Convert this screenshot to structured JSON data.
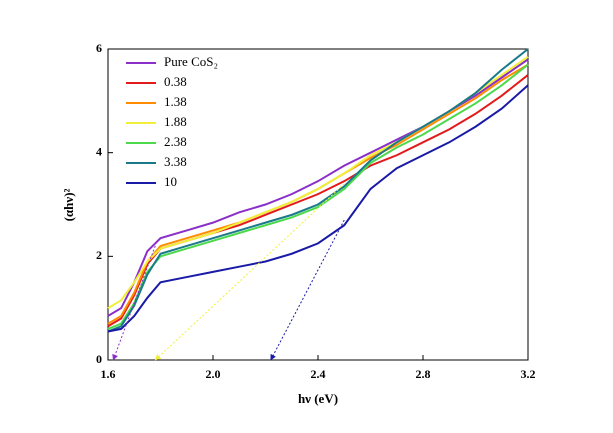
{
  "chart_data": {
    "type": "line",
    "x_label": "hν (eV)",
    "y_label": "(αhν)²",
    "x": [
      1.6,
      1.65,
      1.7,
      1.75,
      1.8,
      1.9,
      2.0,
      2.1,
      2.2,
      2.3,
      2.4,
      2.5,
      2.6,
      2.7,
      2.8,
      2.9,
      3.0,
      3.1,
      3.2
    ],
    "series": [
      {
        "name": "Pure CoS₂",
        "color": "#8b2fc9",
        "values": [
          0.85,
          1.0,
          1.5,
          2.1,
          2.35,
          2.5,
          2.65,
          2.85,
          3.0,
          3.2,
          3.45,
          3.75,
          4.0,
          4.25,
          4.5,
          4.8,
          5.1,
          5.45,
          5.8
        ]
      },
      {
        "name": "0.38",
        "color": "#e31a1c",
        "values": [
          0.65,
          0.8,
          1.25,
          1.85,
          2.15,
          2.3,
          2.45,
          2.6,
          2.8,
          3.0,
          3.2,
          3.45,
          3.75,
          3.95,
          4.2,
          4.45,
          4.75,
          5.1,
          5.5
        ]
      },
      {
        "name": "1.38",
        "color": "#ff8c00",
        "values": [
          0.7,
          0.85,
          1.3,
          1.9,
          2.2,
          2.35,
          2.5,
          2.65,
          2.85,
          3.05,
          3.3,
          3.6,
          3.9,
          4.15,
          4.45,
          4.75,
          5.05,
          5.4,
          5.7
        ]
      },
      {
        "name": "1.88",
        "color": "#f0f03a",
        "values": [
          1.0,
          1.15,
          1.5,
          1.9,
          2.15,
          2.3,
          2.45,
          2.65,
          2.85,
          3.05,
          3.3,
          3.6,
          3.95,
          4.2,
          4.5,
          4.8,
          5.15,
          5.5,
          5.85
        ]
      },
      {
        "name": "2.38",
        "color": "#4cd94c",
        "values": [
          0.6,
          0.7,
          1.1,
          1.7,
          2.0,
          2.15,
          2.3,
          2.45,
          2.6,
          2.75,
          2.95,
          3.3,
          3.8,
          4.1,
          4.35,
          4.65,
          4.95,
          5.3,
          5.7
        ]
      },
      {
        "name": "3.38",
        "color": "#1a7a8a",
        "values": [
          0.55,
          0.65,
          1.05,
          1.65,
          2.05,
          2.2,
          2.35,
          2.5,
          2.65,
          2.8,
          3.0,
          3.35,
          3.85,
          4.2,
          4.5,
          4.8,
          5.15,
          5.6,
          6.0
        ]
      },
      {
        "name": "10",
        "color": "#1a1aa8",
        "values": [
          0.55,
          0.6,
          0.85,
          1.2,
          1.5,
          1.6,
          1.7,
          1.8,
          1.9,
          2.05,
          2.25,
          2.6,
          3.3,
          3.7,
          3.95,
          4.2,
          4.5,
          4.85,
          5.3
        ]
      }
    ],
    "tangent_lines": [
      {
        "color": "#8b2fc9",
        "x": [
          1.78,
          1.62
        ],
        "y": [
          2.2,
          0
        ]
      },
      {
        "color": "#f0f03a",
        "x": [
          2.5,
          1.78
        ],
        "y": [
          3.4,
          0
        ]
      },
      {
        "color": "#1a1aa8",
        "x": [
          2.5,
          2.22
        ],
        "y": [
          2.7,
          0
        ]
      }
    ],
    "xlim": [
      1.6,
      3.2
    ],
    "ylim": [
      0,
      6
    ],
    "xticks": [
      1.6,
      {
        "value": 2,
        "label": "2.0"
      },
      2.4,
      2.8,
      3.2
    ],
    "yticks": [
      0,
      2,
      4,
      6
    ],
    "legend": "upper left"
  }
}
